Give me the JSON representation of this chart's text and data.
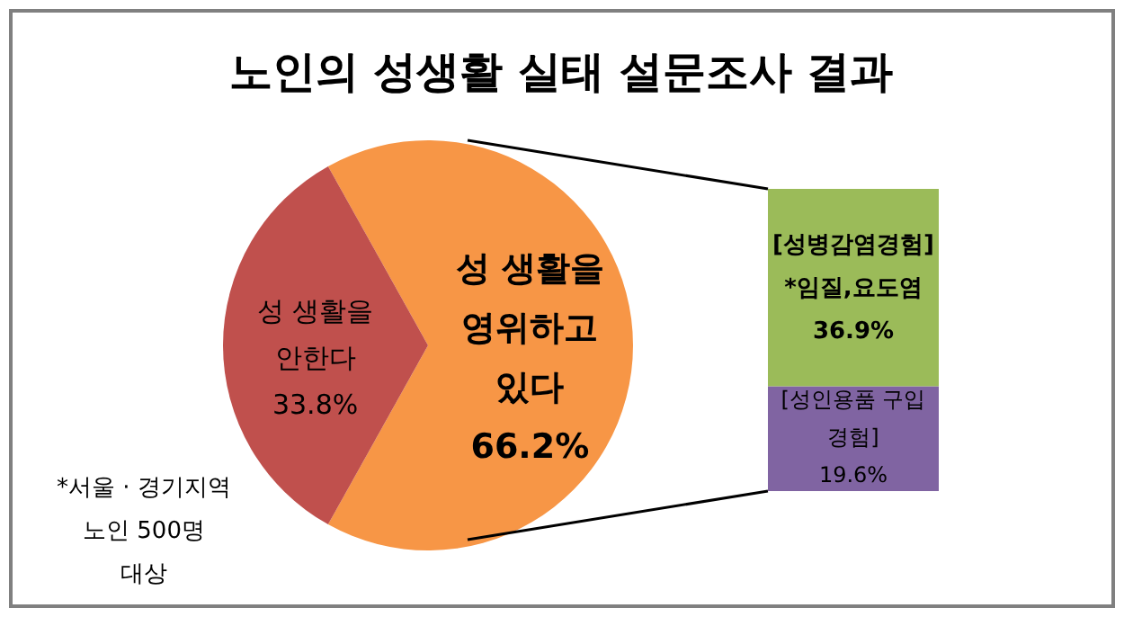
{
  "chart_data": [
    {
      "type": "pie",
      "title": "노인의 성생활 실태 설문조사 결과",
      "categories": [
        "성 생활을\n영위하고\n있다",
        "성 생활을\n안한다"
      ],
      "values": [
        66.2,
        33.8
      ],
      "colors": [
        "#f79646",
        "#c0504d"
      ],
      "value_labels": [
        "66.2%",
        "33.8%"
      ],
      "annotations": [
        "*서울 · 경기지역\n노인 500명\n대상"
      ]
    },
    {
      "type": "bar",
      "stacked": true,
      "categories": [
        null
      ],
      "series": [
        {
          "name": "[성인용품 구입\n경험]",
          "color": "#8064a2",
          "values": [
            19.6
          ],
          "value_labels": [
            "19.6%"
          ]
        },
        {
          "name": "[성병감염경험]\n*임질,요도염",
          "color": "#9bbb59",
          "values": [
            36.9
          ],
          "value_labels": [
            "36.9%"
          ]
        }
      ]
    }
  ]
}
